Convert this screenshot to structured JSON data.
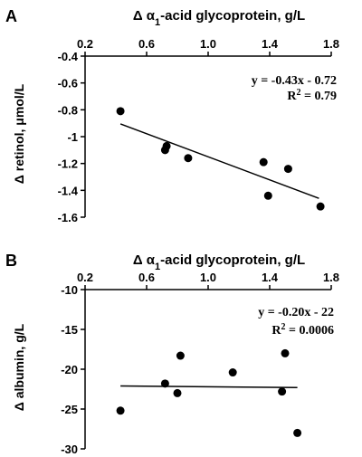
{
  "chart_data": [
    {
      "type": "scatter",
      "panel_label": "A",
      "title": "Δ α1-acid glycoprotein, g/L",
      "title_prefix": "Δ α",
      "title_sub": "1",
      "title_suffix": "-acid glycoprotein, g/L",
      "ylabel": "Δ retinol, μmol/L",
      "xlim": [
        0.2,
        1.8
      ],
      "ylim": [
        -1.6,
        -0.4
      ],
      "x_ticks": [
        0.2,
        0.6,
        1.0,
        1.4,
        1.8
      ],
      "x_tick_labels": [
        "0.2",
        "0.6",
        "1.0",
        "1.4",
        "1.8"
      ],
      "y_ticks": [
        -0.4,
        -0.6,
        -0.8,
        -1.0,
        -1.2,
        -1.4,
        -1.6
      ],
      "y_tick_labels": [
        "-0.4",
        "-0.6",
        "-0.8",
        "-1",
        "-1.2",
        "-1.4",
        "-1.6"
      ],
      "x_axis_position": "top",
      "points": [
        {
          "x": 0.43,
          "y": -0.81
        },
        {
          "x": 0.72,
          "y": -1.1
        },
        {
          "x": 0.73,
          "y": -1.07
        },
        {
          "x": 0.87,
          "y": -1.16
        },
        {
          "x": 1.36,
          "y": -1.19
        },
        {
          "x": 1.39,
          "y": -1.44
        },
        {
          "x": 1.52,
          "y": -1.24
        },
        {
          "x": 1.73,
          "y": -1.52
        }
      ],
      "trendline": {
        "x_range": [
          0.43,
          1.72
        ],
        "slope": -0.43,
        "intercept": -0.72
      },
      "equation": "y = -0.43x - 0.72",
      "r2_label": "R",
      "r2_sup": "2",
      "r2_value": " = 0.79",
      "grid": false
    },
    {
      "type": "scatter",
      "panel_label": "B",
      "title": "Δ α1-acid glycoprotein, g/L",
      "title_prefix": "Δ α",
      "title_sub": "1",
      "title_suffix": "-acid glycoprotein, g/L",
      "ylabel": "Δ albumin, g/L",
      "xlim": [
        0.2,
        1.8
      ],
      "ylim": [
        -30,
        -10
      ],
      "x_ticks": [
        0.2,
        0.6,
        1.0,
        1.4,
        1.8
      ],
      "x_tick_labels": [
        "0.2",
        "0.6",
        "1.0",
        "1.4",
        "1.8"
      ],
      "y_ticks": [
        -10,
        -15,
        -20,
        -25,
        -30
      ],
      "y_tick_labels": [
        "-10",
        "-15",
        "-20",
        "-25",
        "-30"
      ],
      "x_axis_position": "top",
      "points": [
        {
          "x": 0.43,
          "y": -25.2
        },
        {
          "x": 0.72,
          "y": -21.8
        },
        {
          "x": 0.8,
          "y": -23.0
        },
        {
          "x": 0.82,
          "y": -18.3
        },
        {
          "x": 1.16,
          "y": -20.4
        },
        {
          "x": 1.48,
          "y": -22.8
        },
        {
          "x": 1.5,
          "y": -18.0
        },
        {
          "x": 1.58,
          "y": -28.0
        }
      ],
      "trendline": {
        "x_range": [
          0.43,
          1.58
        ],
        "y_start": -22.1,
        "y_end": -22.3
      },
      "equation": "y = -0.20x - 22",
      "r2_label": "R",
      "r2_sup": "2",
      "r2_value": " = 0.0006",
      "grid": false
    }
  ]
}
